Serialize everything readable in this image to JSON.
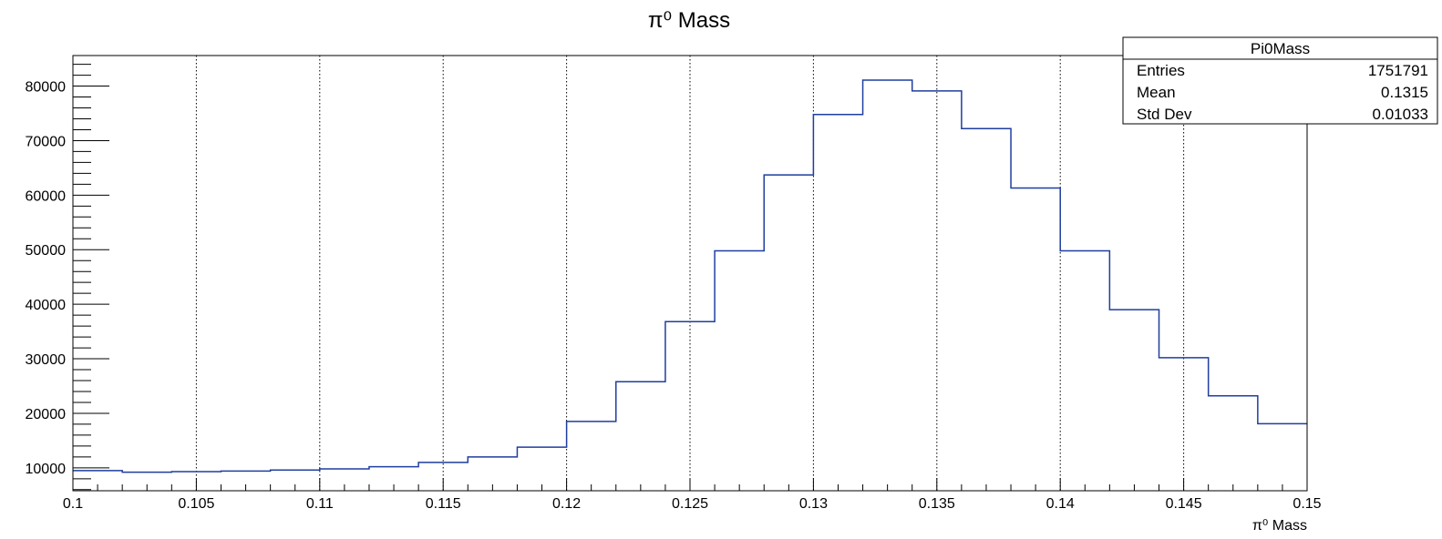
{
  "chart_data": {
    "type": "histogram",
    "title": "π⁰ Mass",
    "xlabel": "π⁰ Mass",
    "ylabel": "",
    "xlim": [
      0.1,
      0.15
    ],
    "ylim": [
      5800,
      85600
    ],
    "bin_width": 0.002,
    "x_ticks": [
      "0.1",
      "0.105",
      "0.11",
      "0.115",
      "0.12",
      "0.125",
      "0.13",
      "0.135",
      "0.14",
      "0.145",
      "0.15"
    ],
    "y_ticks": [
      "10000",
      "20000",
      "30000",
      "40000",
      "50000",
      "60000",
      "70000",
      "80000"
    ],
    "grid": "vertical-dotted",
    "line_color": "#1f3f9f",
    "bins": [
      {
        "x": 0.1,
        "count": 9500
      },
      {
        "x": 0.102,
        "count": 9200
      },
      {
        "x": 0.104,
        "count": 9300
      },
      {
        "x": 0.106,
        "count": 9400
      },
      {
        "x": 0.108,
        "count": 9600
      },
      {
        "x": 0.11,
        "count": 9800
      },
      {
        "x": 0.112,
        "count": 10200
      },
      {
        "x": 0.114,
        "count": 11000
      },
      {
        "x": 0.116,
        "count": 12000
      },
      {
        "x": 0.118,
        "count": 13800
      },
      {
        "x": 0.12,
        "count": 18500
      },
      {
        "x": 0.122,
        "count": 25800
      },
      {
        "x": 0.124,
        "count": 36800
      },
      {
        "x": 0.126,
        "count": 49800
      },
      {
        "x": 0.128,
        "count": 63700
      },
      {
        "x": 0.13,
        "count": 74800
      },
      {
        "x": 0.132,
        "count": 81100
      },
      {
        "x": 0.134,
        "count": 79100
      },
      {
        "x": 0.136,
        "count": 72200
      },
      {
        "x": 0.138,
        "count": 61300
      },
      {
        "x": 0.14,
        "count": 49800
      },
      {
        "x": 0.142,
        "count": 39000
      },
      {
        "x": 0.144,
        "count": 30200
      },
      {
        "x": 0.146,
        "count": 23200
      },
      {
        "x": 0.148,
        "count": 18100
      }
    ],
    "stats_box": {
      "name": "Pi0Mass",
      "rows": [
        {
          "label": "Entries",
          "value": "1751791"
        },
        {
          "label": "Mean",
          "value": "0.1315"
        },
        {
          "label": "Std Dev",
          "value": "0.01033"
        }
      ],
      "placement": "top-right"
    }
  }
}
